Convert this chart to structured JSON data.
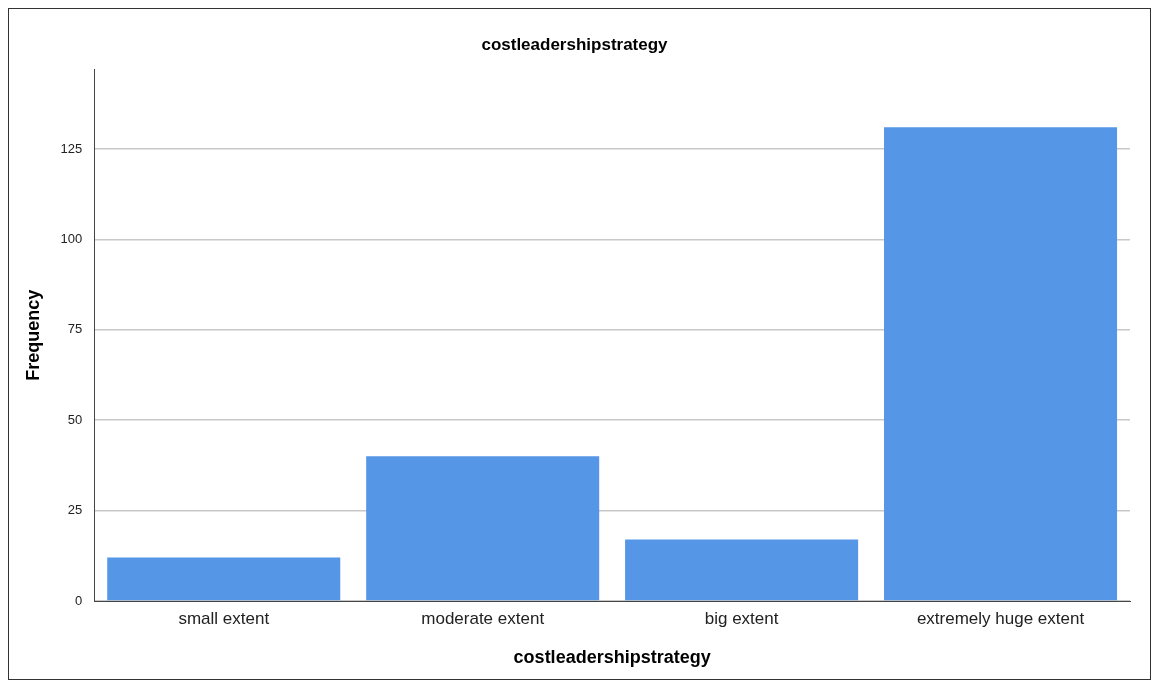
{
  "chart_data": {
    "type": "bar",
    "title": "costleadershipstrategy",
    "xlabel": "costleadershipstrategy",
    "ylabel": "Frequency",
    "categories": [
      "small extent",
      "moderate extent",
      "big extent",
      "extremely huge extent"
    ],
    "values": [
      12,
      40,
      17,
      131
    ],
    "color": "#5596e6",
    "ylim": [
      0,
      147
    ],
    "yticks": [
      0,
      25,
      50,
      75,
      100,
      125
    ],
    "grid": "y"
  }
}
